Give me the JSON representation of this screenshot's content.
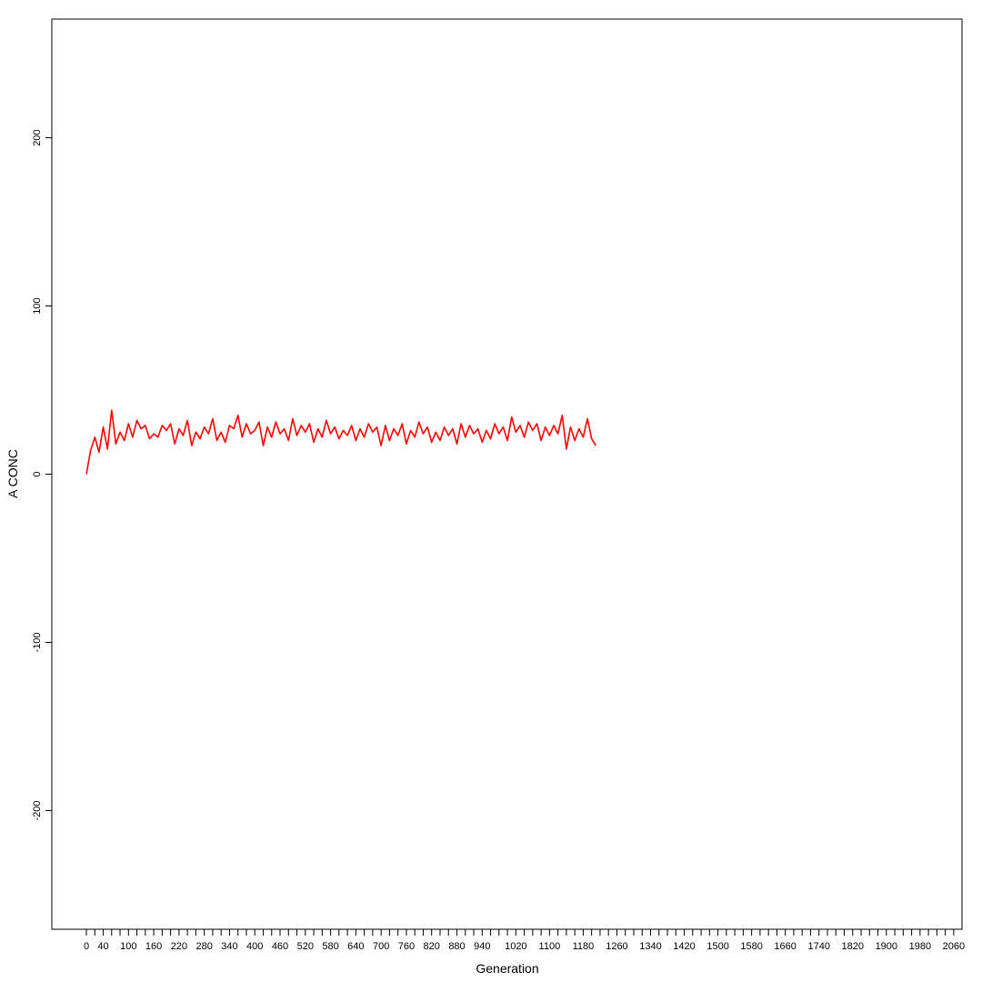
{
  "chart_data": {
    "type": "line",
    "title": "",
    "xlabel": "Generation",
    "ylabel": "A CONC",
    "xlim": [
      -20,
      2060
    ],
    "ylim": [
      -270,
      270
    ],
    "x_ticks_major": [
      0,
      20,
      40,
      60,
      80,
      100,
      120,
      140,
      160,
      180,
      200,
      220,
      240,
      260,
      280,
      300,
      320,
      340,
      360,
      380,
      400,
      420,
      440,
      460,
      480,
      500,
      520,
      540,
      560,
      580,
      600,
      620,
      640,
      660,
      680,
      700,
      720,
      740,
      760,
      780,
      800,
      820,
      840,
      860,
      880,
      900,
      920,
      940,
      960,
      980,
      1000,
      1020,
      1040,
      1060,
      1080,
      1100,
      1120,
      1140,
      1160,
      1180,
      1200,
      1220,
      1240,
      1260,
      1280,
      1300,
      1320,
      1340,
      1360,
      1380,
      1400,
      1420,
      1440,
      1460,
      1480,
      1500,
      1520,
      1540,
      1560,
      1580,
      1600,
      1620,
      1640,
      1660,
      1680,
      1700,
      1720,
      1740,
      1760,
      1780,
      1800,
      1820,
      1840,
      1860,
      1880,
      1900,
      1920,
      1940,
      1960,
      1980,
      2000,
      2020,
      2040,
      2060
    ],
    "x_tick_labels": [
      "0",
      "40",
      "100",
      "160",
      "220",
      "280",
      "340",
      "400",
      "460",
      "520",
      "580",
      "640",
      "700",
      "760",
      "820",
      "880",
      "940",
      "1020",
      "1100",
      "1180",
      "1260",
      "1340",
      "1420",
      "1500",
      "1580",
      "1660",
      "1740",
      "1820",
      "1900",
      "1980",
      "2060"
    ],
    "y_ticks": [
      -200,
      -100,
      0,
      100,
      200
    ],
    "grid": false,
    "series": [
      {
        "color": "#ff0000",
        "x": [
          0,
          10,
          20,
          30,
          40,
          50,
          60,
          70,
          80,
          90,
          100,
          110,
          120,
          130,
          140,
          150,
          160,
          170,
          180,
          190,
          200,
          210,
          220,
          230,
          240,
          250,
          260,
          270,
          280,
          290,
          300,
          310,
          320,
          330,
          340,
          350,
          360,
          370,
          380,
          390,
          400,
          410,
          420,
          430,
          440,
          450,
          460,
          470,
          480,
          490,
          500,
          510,
          520,
          530,
          540,
          550,
          560,
          570,
          580,
          590,
          600,
          610,
          620,
          630,
          640,
          650,
          660,
          670,
          680,
          690,
          700,
          710,
          720,
          730,
          740,
          750,
          760,
          770,
          780,
          790,
          800,
          810,
          820,
          830,
          840,
          850,
          860,
          870,
          880,
          890,
          900,
          910,
          920,
          930,
          940,
          950,
          960,
          970,
          980,
          990,
          1000,
          1010,
          1020,
          1030,
          1040,
          1050,
          1060,
          1070,
          1080,
          1090,
          1100,
          1110,
          1120,
          1130,
          1140,
          1150,
          1160,
          1170,
          1180,
          1190,
          1200,
          1210
        ],
        "y": [
          0,
          14,
          22,
          13,
          28,
          15,
          38,
          18,
          25,
          20,
          30,
          22,
          32,
          27,
          29,
          21,
          24,
          22,
          29,
          26,
          30,
          18,
          27,
          23,
          32,
          17,
          25,
          21,
          28,
          24,
          33,
          20,
          25,
          19,
          29,
          27,
          35,
          22,
          30,
          24,
          26,
          31,
          17,
          28,
          22,
          31,
          24,
          27,
          20,
          33,
          23,
          29,
          25,
          30,
          19,
          27,
          22,
          32,
          24,
          28,
          21,
          26,
          23,
          29,
          20,
          27,
          22,
          30,
          25,
          28,
          17,
          29,
          20,
          27,
          23,
          30,
          18,
          26,
          22,
          31,
          24,
          28,
          19,
          25,
          20,
          28,
          23,
          27,
          18,
          30,
          22,
          29,
          24,
          27,
          19,
          26,
          21,
          30,
          24,
          28,
          20,
          34,
          25,
          29,
          22,
          31,
          26,
          30,
          20,
          28,
          23,
          29,
          24,
          35,
          15,
          28,
          20,
          27,
          22,
          33,
          21,
          17
        ]
      }
    ]
  }
}
